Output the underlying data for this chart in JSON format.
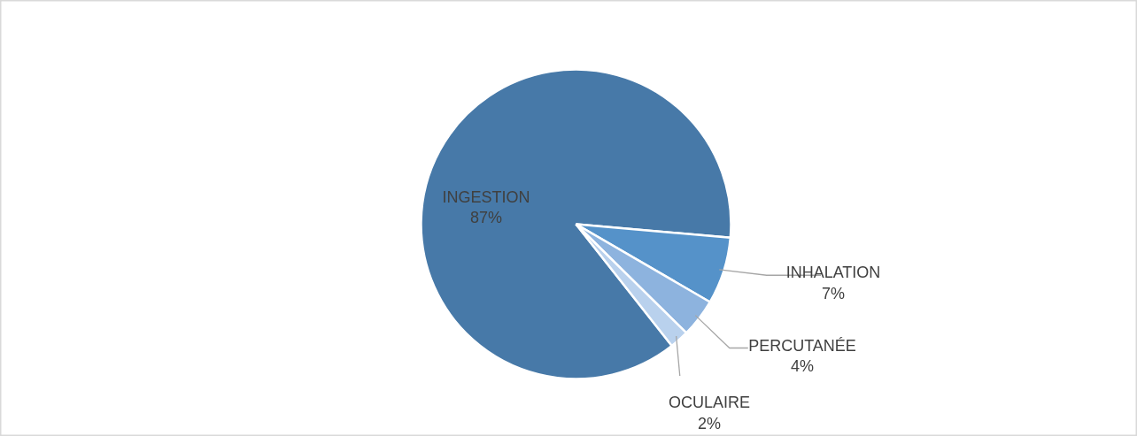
{
  "chart_data": {
    "type": "pie",
    "categories": [
      "INGESTION",
      "INHALATION",
      "PERCUTANÉE",
      "OCULAIRE"
    ],
    "values": [
      87,
      7,
      4,
      2
    ],
    "value_labels": [
      "87%",
      "7%",
      "4%",
      "2%"
    ],
    "colors": [
      "#4779a8",
      "#5592c9",
      "#8db3de",
      "#b9d1ed"
    ]
  }
}
